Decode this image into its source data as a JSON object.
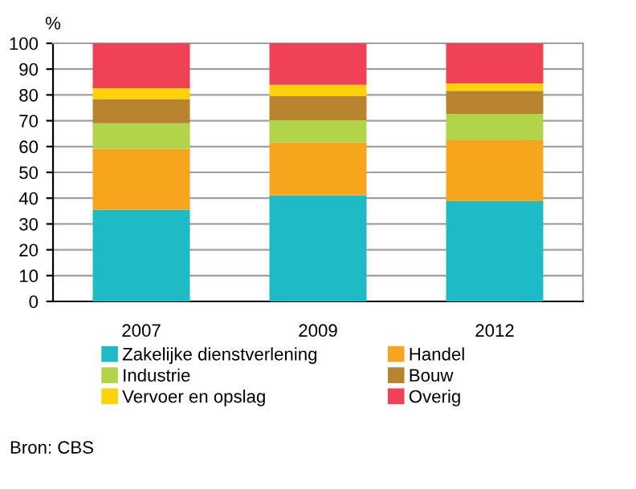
{
  "chart_data": {
    "type": "bar",
    "stacked": true,
    "ylabel": "%",
    "categories": [
      "2007",
      "2009",
      "2012"
    ],
    "series": [
      {
        "name": "Zakelijke dienstverlening",
        "color": "#1ebac6",
        "values": [
          35.5,
          41.1,
          38.8
        ]
      },
      {
        "name": "Handel",
        "color": "#f8a51e",
        "values": [
          23.6,
          20.5,
          23.6
        ]
      },
      {
        "name": "Industrie",
        "color": "#b1d44a",
        "values": [
          9.9,
          8.6,
          10.3
        ]
      },
      {
        "name": "Bouw",
        "color": "#b8842f",
        "values": [
          9.3,
          9.3,
          8.9
        ]
      },
      {
        "name": "Vervoer en opslag",
        "color": "#fdd20a",
        "values": [
          4.3,
          4.4,
          2.9
        ]
      },
      {
        "name": "Overig",
        "color": "#ef4257",
        "values": [
          17.4,
          16.1,
          15.5
        ]
      }
    ],
    "ylim": [
      0,
      100
    ],
    "yticks": [
      0,
      10,
      20,
      30,
      40,
      50,
      60,
      70,
      80,
      90,
      100
    ],
    "grid": "y",
    "legend": "bottom",
    "annotations": [
      "Bron: CBS"
    ]
  }
}
